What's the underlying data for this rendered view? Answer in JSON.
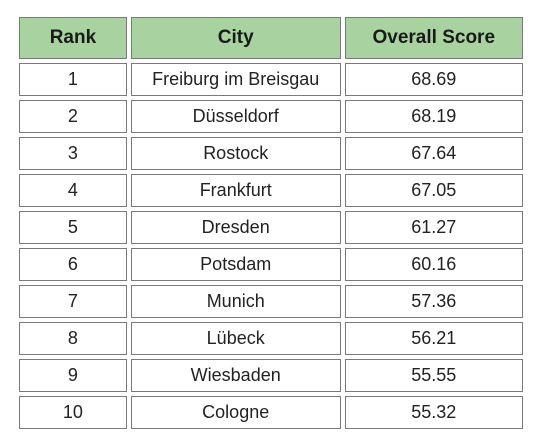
{
  "chart_data": {
    "type": "table",
    "columns": [
      "Rank",
      "City",
      "Overall Score"
    ],
    "rows": [
      {
        "rank": "1",
        "city": "Freiburg im Breisgau",
        "score": "68.69"
      },
      {
        "rank": "2",
        "city": "Düsseldorf",
        "score": "68.19"
      },
      {
        "rank": "3",
        "city": "Rostock",
        "score": "67.64"
      },
      {
        "rank": "4",
        "city": "Frankfurt",
        "score": "67.05"
      },
      {
        "rank": "5",
        "city": "Dresden",
        "score": "61.27"
      },
      {
        "rank": "6",
        "city": "Potsdam",
        "score": "60.16"
      },
      {
        "rank": "7",
        "city": "Munich",
        "score": "57.36"
      },
      {
        "rank": "8",
        "city": "Lübeck",
        "score": "56.21"
      },
      {
        "rank": "9",
        "city": "Wiesbaden",
        "score": "55.55"
      },
      {
        "rank": "10",
        "city": "Cologne",
        "score": "55.32"
      }
    ]
  },
  "colors": {
    "header_background": "#a8d3a0",
    "cell_border": "#7a7a7a",
    "cell_background": "#ffffff"
  }
}
